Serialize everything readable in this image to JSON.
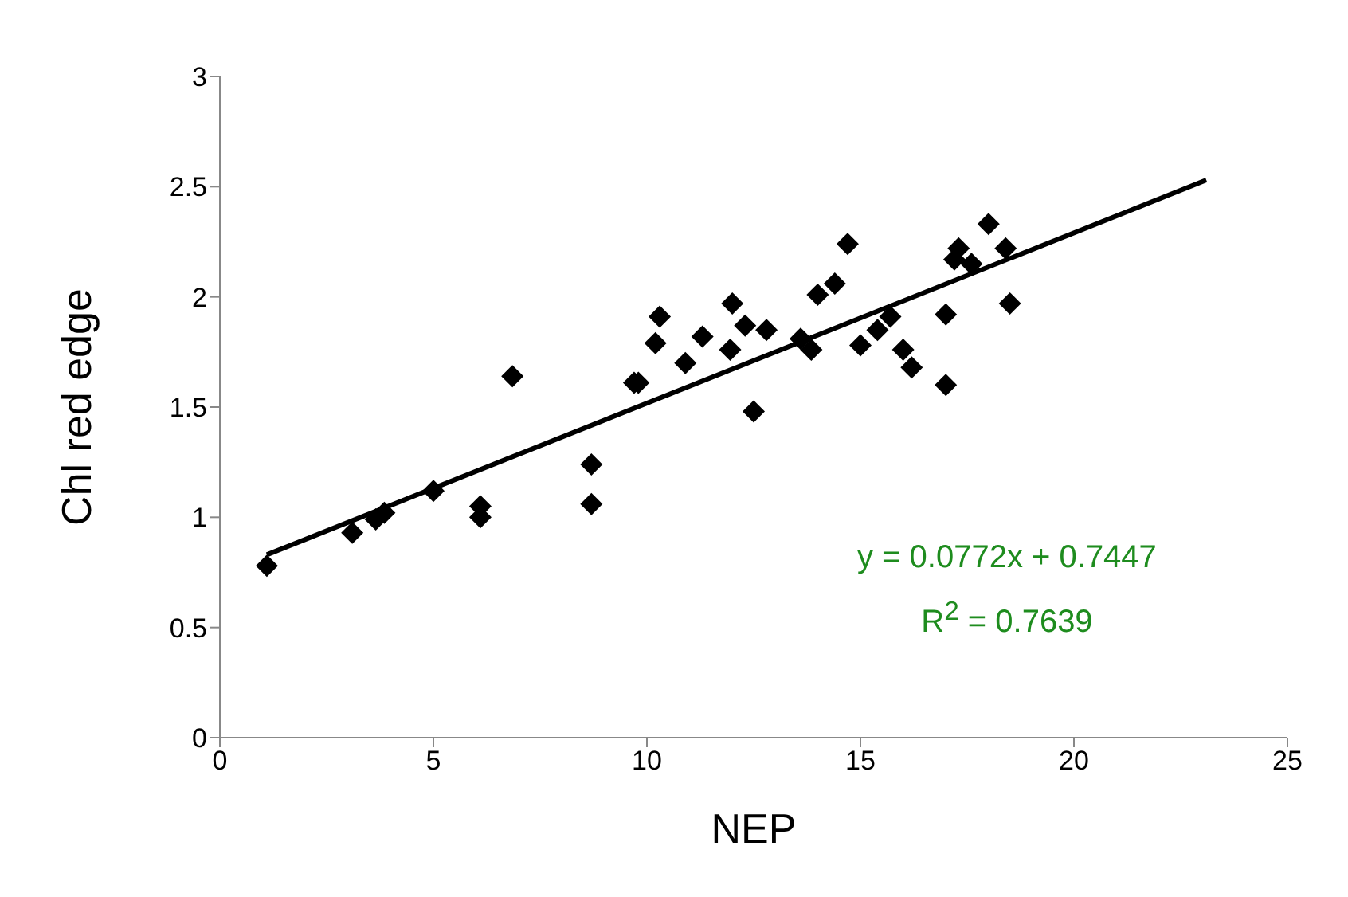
{
  "chart_data": {
    "type": "scatter",
    "xlabel": "NEP",
    "ylabel": "Chl red edge",
    "xlim": [
      0,
      25
    ],
    "xticks": [
      0,
      5,
      10,
      15,
      20,
      25
    ],
    "ylim": [
      0,
      3
    ],
    "yticks": [
      0,
      0.5,
      1,
      1.5,
      2,
      2.5,
      3
    ],
    "series": [
      {
        "color": "#000000",
        "marker": "diamond",
        "x": [
          1.1,
          3.1,
          3.65,
          3.85,
          5.0,
          6.1,
          6.1,
          6.85,
          8.7,
          8.7,
          9.7,
          9.8,
          10.2,
          10.3,
          10.9,
          11.3,
          11.95,
          12.0,
          12.3,
          12.5,
          12.8,
          13.6,
          13.85,
          14.0,
          14.4,
          14.7,
          15.0,
          15.4,
          15.7,
          16.0,
          16.2,
          17.0,
          17.0,
          17.2,
          17.3,
          17.6,
          18.0,
          18.4,
          18.5
        ],
        "values": [
          0.78,
          0.93,
          0.99,
          1.02,
          1.12,
          1.05,
          1.0,
          1.64,
          1.24,
          1.06,
          1.61,
          1.61,
          1.79,
          1.91,
          1.7,
          1.82,
          1.76,
          1.97,
          1.87,
          1.48,
          1.85,
          1.81,
          1.76,
          2.01,
          2.06,
          2.24,
          1.78,
          1.85,
          1.91,
          1.76,
          1.68,
          1.92,
          1.6,
          2.17,
          2.22,
          2.15,
          2.33,
          2.22,
          1.97
        ]
      },
      {
        "type": "line",
        "color": "#000000",
        "x": [
          1.1,
          23.1
        ],
        "values": [
          0.83,
          2.53
        ],
        "line_style": "solid",
        "marker": "none"
      }
    ],
    "annotations": [
      "y = 0.0772x + 0.7447",
      "R$^{2}$ = 0.7639"
    ]
  }
}
